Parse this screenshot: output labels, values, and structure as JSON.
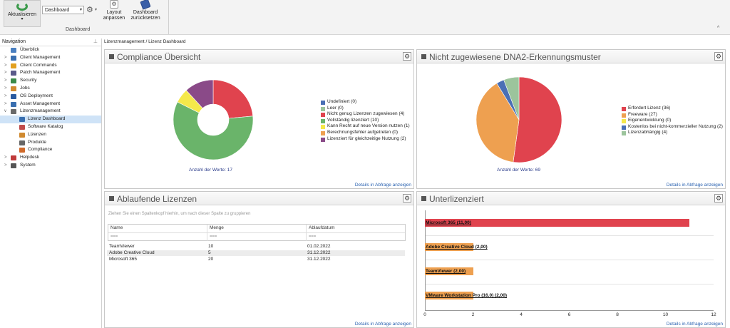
{
  "ribbon": {
    "refresh_label": "Aktualisieren",
    "refresh_arrow": "▾",
    "dashboard_select": "Dashboard",
    "layout_label_1": "Layout",
    "layout_label_2": "anpassen",
    "reset_label_1": "Dashboard",
    "reset_label_2": "zurücksetzen",
    "group_label": "Dashboard",
    "collapse": "^"
  },
  "nav": {
    "title": "Navigation",
    "items": [
      {
        "label": "Überblick",
        "color": "#4a7fc0",
        "exp": ""
      },
      {
        "label": "Client Management",
        "color": "#3a6fb0",
        "exp": ">"
      },
      {
        "label": "Client Commands",
        "color": "#e2a020",
        "exp": ">"
      },
      {
        "label": "Patch Management",
        "color": "#5a5a8a",
        "exp": ">"
      },
      {
        "label": "Security",
        "color": "#3a8a4a",
        "exp": ">"
      },
      {
        "label": "Jobs",
        "color": "#d08a30",
        "exp": ">"
      },
      {
        "label": "OS Deployment",
        "color": "#2a5aa0",
        "exp": ">"
      },
      {
        "label": "Asset Management",
        "color": "#3a6fb0",
        "exp": ">"
      },
      {
        "label": "Lizenzmanagement",
        "color": "#6a6a6a",
        "exp": "v"
      }
    ],
    "children": [
      {
        "label": "Lizenz Dashboard",
        "color": "#3a6fb0",
        "selected": true
      },
      {
        "label": "Software Katalog",
        "color": "#c04a4a",
        "selected": false
      },
      {
        "label": "Lizenzen",
        "color": "#d08a30",
        "selected": false
      },
      {
        "label": "Produkte",
        "color": "#666666",
        "selected": false
      },
      {
        "label": "Compliance",
        "color": "#d06a2a",
        "selected": false
      }
    ],
    "after": [
      {
        "label": "Helpdesk",
        "color": "#c03a3a",
        "exp": ">"
      },
      {
        "label": "System",
        "color": "#555555",
        "exp": ">"
      }
    ]
  },
  "breadcrumb": "Lizenzmanagement / Lizenz Dashboard",
  "details_link": "Details in Abfrage anzeigen",
  "panel_compliance": {
    "title": "Compliance Übersicht",
    "count": "Anzahl der Werte: 17",
    "legend": [
      {
        "label": "Undefiniert (0)",
        "color": "#4a6fb5"
      },
      {
        "label": "Leer (0)",
        "color": "#9cc49c"
      },
      {
        "label": "Nicht genug Lizenzen zugewiesen (4)",
        "color": "#e0434e"
      },
      {
        "label": "Vollständig lizenziert (10)",
        "color": "#6ab46a"
      },
      {
        "label": "Kann Recht auf neue Version nutzen (1)",
        "color": "#f5e84a"
      },
      {
        "label": "Berechnungsfehler aufgetreten (0)",
        "color": "#eea050"
      },
      {
        "label": "Lizenziert für gleichzeitige Nutzung (2)",
        "color": "#8a4a88"
      }
    ]
  },
  "panel_dna": {
    "title": "Nicht zugewiesene DNA2-Erkennungsmuster",
    "count": "Anzahl der Werte: 69",
    "legend": [
      {
        "label": "Erfordert Lizenz (36)",
        "color": "#e0434e"
      },
      {
        "label": "Freeware (27)",
        "color": "#eea050"
      },
      {
        "label": "Eigenentwicklung (0)",
        "color": "#f5e84a"
      },
      {
        "label": "Kostenlos bei nicht-kommerzieller Nutzung (2)",
        "color": "#4a6fb5"
      },
      {
        "label": "Lizenzabhängig (4)",
        "color": "#9cc49c"
      }
    ]
  },
  "panel_expiring": {
    "title": "Ablaufende Lizenzen",
    "group_hint": "Ziehen Sie einen Spaltenkopf hierhin, um nach dieser Spalte zu gruppieren",
    "columns": [
      "Name",
      "Menge",
      "Ablaufdatum"
    ],
    "filter": "⩶",
    "rows": [
      [
        "TeamViewer",
        "10",
        "01.02.2022"
      ],
      [
        "Adobe Creative Cloud",
        "5",
        "31.12.2022"
      ],
      [
        "Microsoft 365",
        "20",
        "31.12.2022"
      ]
    ]
  },
  "panel_under": {
    "title": "Unterlizenziert"
  },
  "chart_data": [
    {
      "type": "pie",
      "categories": [
        "Undefiniert",
        "Leer",
        "Nicht genug Lizenzen zugewiesen",
        "Vollständig lizenziert",
        "Kann Recht auf neue Version nutzen",
        "Berechnungsfehler aufgetreten",
        "Lizenziert für gleichzeitige Nutzung"
      ],
      "values": [
        0,
        0,
        4,
        10,
        1,
        0,
        2
      ],
      "colors": [
        "#4a6fb5",
        "#9cc49c",
        "#e0434e",
        "#6ab46a",
        "#f5e84a",
        "#eea050",
        "#8a4a88"
      ],
      "title": "Compliance Übersicht"
    },
    {
      "type": "pie",
      "categories": [
        "Erfordert Lizenz",
        "Freeware",
        "Eigenentwicklung",
        "Kostenlos bei nicht-kommerzieller Nutzung",
        "Lizenzabhängig"
      ],
      "values": [
        36,
        27,
        0,
        2,
        4
      ],
      "colors": [
        "#e0434e",
        "#eea050",
        "#f5e84a",
        "#4a6fb5",
        "#9cc49c"
      ],
      "title": "Nicht zugewiesene DNA2-Erkennungsmuster"
    },
    {
      "type": "bar",
      "orientation": "horizontal",
      "categories": [
        "Microsoft 365",
        "Adobe Creative Cloud",
        "TeamViewer",
        "VMware Workstation Pro (16.0)"
      ],
      "labels": [
        "Microsoft 365 (11,00)",
        "Adobe Creative Cloud (2,00)",
        "TeamViewer (2,00)",
        "VMware Workstation Pro (16.0) (2,00)"
      ],
      "values": [
        11,
        2,
        2,
        2
      ],
      "colors": [
        "#e0434e",
        "#eea050",
        "#eea050",
        "#eea050"
      ],
      "xlim": [
        0,
        12
      ],
      "xticks": [
        "0",
        "2",
        "4",
        "6",
        "8",
        "10",
        "12"
      ],
      "title": "Unterlizenziert"
    }
  ]
}
